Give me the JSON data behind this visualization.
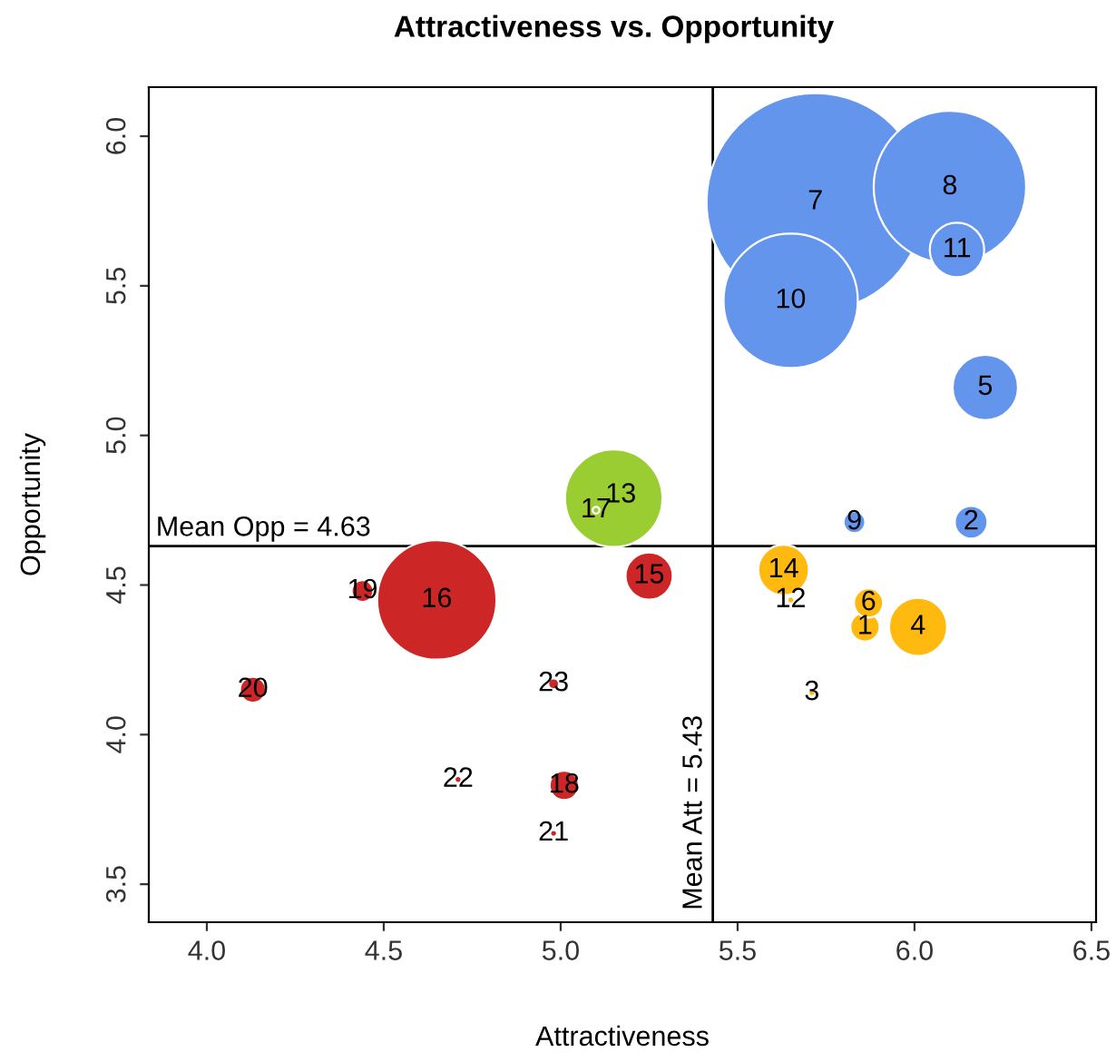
{
  "chart_data": {
    "type": "bubble",
    "title": "Attractiveness vs. Opportunity",
    "xlabel": "Attractiveness",
    "ylabel": "Opportunity",
    "x": [
      5.86,
      6.16,
      6.01,
      6.2,
      5.87,
      5.72,
      6.1,
      5.83,
      5.65,
      6.12,
      5.63,
      5.15,
      5.25,
      4.65,
      5.01,
      4.44,
      4.13,
      4.98,
      5.71,
      5.65,
      5.1,
      4.98,
      4.71
    ],
    "values": [
      4.36,
      4.71,
      4.36,
      5.16,
      4.44,
      5.78,
      5.83,
      4.71,
      5.45,
      5.62,
      4.55,
      4.79,
      4.53,
      4.45,
      3.83,
      4.48,
      4.15,
      4.17,
      4.14,
      4.45,
      4.75,
      3.67,
      3.85
    ],
    "sizes": [
      0.018,
      0.0225,
      0.071,
      0.09,
      0.018,
      1,
      0.49,
      0.01,
      0.38,
      0.0625,
      0.054,
      0.2,
      0.047,
      0.3,
      0.018,
      0.01,
      0.014,
      0.0025,
      0.001,
      0.001,
      0.001,
      0.001,
      0.001
    ],
    "colors": [
      "#ffb90f",
      "#6495ed",
      "#ffb90f",
      "#6495ed",
      "#ffb90f",
      "#6495ed",
      "#6495ed",
      "#6495ed",
      "#6495ed",
      "#6495ed",
      "#ffb90f",
      "#9acd32",
      "#cd2626",
      "#cd2626",
      "#cd2626",
      "#cd2626",
      "#cd2626",
      "#cd2626",
      "#ffb90f",
      "#ffb90f",
      "#9acd32",
      "#cd2626",
      "#cd2626"
    ],
    "annotations": [
      {
        "text": "1",
        "x": 5.86,
        "y": 4.36
      },
      {
        "text": "2",
        "x": 6.16,
        "y": 4.71
      },
      {
        "text": "3",
        "x": 5.71,
        "y": 4.14
      },
      {
        "text": "4",
        "x": 6.01,
        "y": 4.36
      },
      {
        "text": "5",
        "x": 6.2,
        "y": 5.16
      },
      {
        "text": "6",
        "x": 5.87,
        "y": 4.44
      },
      {
        "text": "7",
        "x": 5.72,
        "y": 5.78
      },
      {
        "text": "8",
        "x": 6.1,
        "y": 5.83
      },
      {
        "text": "9",
        "x": 5.83,
        "y": 4.71
      },
      {
        "text": "10",
        "x": 5.65,
        "y": 5.45
      },
      {
        "text": "11",
        "x": 6.12,
        "y": 5.62
      },
      {
        "text": "12",
        "x": 5.65,
        "y": 4.45
      },
      {
        "text": "13",
        "x": 5.17,
        "y": 4.8
      },
      {
        "text": "14",
        "x": 5.63,
        "y": 4.55
      },
      {
        "text": "15",
        "x": 5.25,
        "y": 4.53
      },
      {
        "text": "16",
        "x": 4.65,
        "y": 4.45
      },
      {
        "text": "17",
        "x": 5.1,
        "y": 4.75
      },
      {
        "text": "18",
        "x": 5.01,
        "y": 3.83
      },
      {
        "text": "19",
        "x": 4.44,
        "y": 4.48
      },
      {
        "text": "20",
        "x": 4.13,
        "y": 4.15
      },
      {
        "text": "21",
        "x": 4.98,
        "y": 3.67
      },
      {
        "text": "22",
        "x": 4.71,
        "y": 3.85
      },
      {
        "text": "23",
        "x": 4.98,
        "y": 4.17
      }
    ],
    "ref_lines": [
      {
        "axis": "x",
        "value": 5.43,
        "label": "Mean Att = 5.43",
        "color": "#000000"
      },
      {
        "axis": "y",
        "value": 4.63,
        "label": "Mean Opp = 4.63",
        "color": "#000000"
      }
    ],
    "xlim": [
      3.836,
      6.513
    ],
    "ylim": [
      3.373,
      6.164
    ],
    "xticks": [
      {
        "value": 4,
        "label": "4.0"
      },
      4.5,
      {
        "value": 5,
        "label": "5.0"
      },
      5.5,
      {
        "value": 6,
        "label": "6.0"
      },
      6.5
    ],
    "yticks": [
      3.5,
      {
        "value": 4,
        "label": "4.0"
      },
      4.5,
      {
        "value": 5,
        "label": "5.0"
      },
      5.5,
      {
        "value": 6,
        "label": "6.0"
      }
    ]
  }
}
